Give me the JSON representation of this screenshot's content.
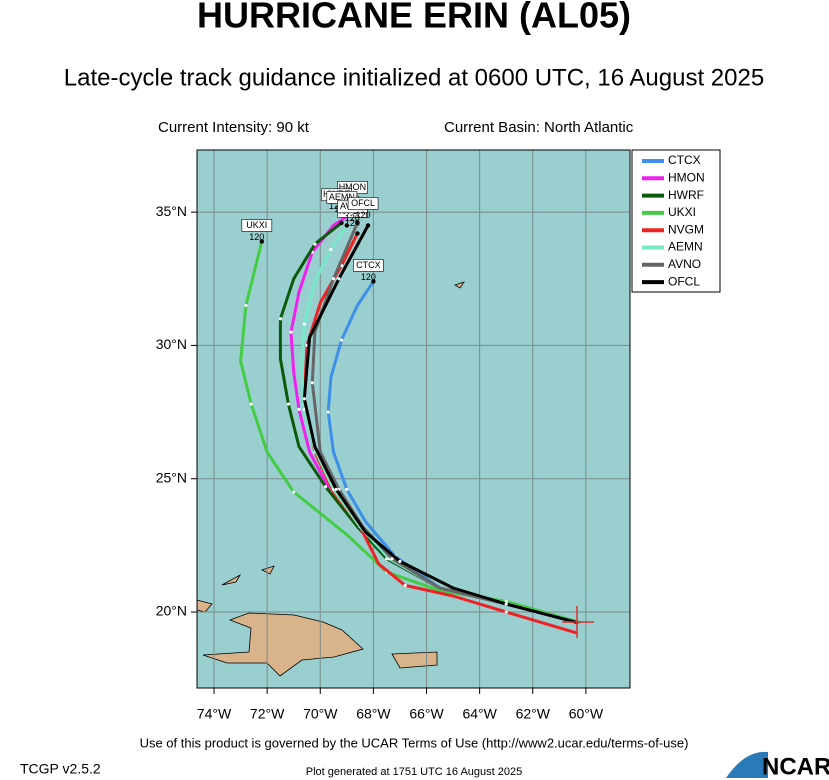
{
  "chart_data": {
    "type": "track-map",
    "title": "HURRICANE ERIN (AL05)",
    "subtitle": "Late-cycle track guidance initialized at 0600 UTC, 16 August 2025",
    "intensity": "Current Intensity: 90 kt",
    "basin": "Current Basin: North Atlantic",
    "terms": "Use of this product is governed by the UCAR Terms of Use (http://www2.ucar.edu/terms-of-use)",
    "version": "TCGP v2.5.2",
    "generated": "Plot generated at 1751 UTC  16 August 2025",
    "logo": "NCAR",
    "xlim": [
      -74.64,
      -58.34
    ],
    "ylim": [
      17.15,
      37.33
    ],
    "xticks": [
      {
        "value": -74,
        "label": "74°W"
      },
      {
        "value": -72,
        "label": "72°W"
      },
      {
        "value": -70,
        "label": "70°W"
      },
      {
        "value": -68,
        "label": "68°W"
      },
      {
        "value": -66,
        "label": "66°W"
      },
      {
        "value": -64,
        "label": "64°W"
      },
      {
        "value": -62,
        "label": "62°W"
      },
      {
        "value": -60,
        "label": "60°W"
      }
    ],
    "yticks": [
      {
        "value": 20,
        "label": "20°N"
      },
      {
        "value": 25,
        "label": "25°N"
      },
      {
        "value": 30,
        "label": "30°N"
      },
      {
        "value": 35,
        "label": "35°N"
      }
    ],
    "grid": true,
    "legend": "upper right",
    "end_hour": 120,
    "series": [
      {
        "name": "CTCX",
        "color": "#3d8fe8",
        "lon": [
          -60.3,
          -63,
          -65.5,
          -67.2,
          -68.3,
          -69,
          -69.5,
          -69.7,
          -69.6,
          -69.2,
          -68.6,
          -68
        ],
        "lat": [
          19.6,
          20.3,
          20.9,
          22.1,
          23.4,
          24.6,
          26,
          27.5,
          28.8,
          30.2,
          31.5,
          32.4
        ]
      },
      {
        "name": "HMON",
        "color": "#ee22ee",
        "lon": [
          -60.3,
          -63,
          -65.5,
          -67.5,
          -68.5,
          -69.6,
          -70.4,
          -70.8,
          -71,
          -71.1,
          -70.8,
          -70.3,
          -69.5,
          -68.6
        ],
        "lat": [
          19.6,
          20.3,
          20.9,
          22,
          23.2,
          24.5,
          26,
          27.6,
          29,
          30.5,
          32,
          33.5,
          34.5,
          35.1
        ]
      },
      {
        "name": "HWRF",
        "color": "#0a5a0a",
        "lon": [
          -60.3,
          -63,
          -65.5,
          -67.5,
          -68.6,
          -69.8,
          -70.8,
          -71.2,
          -71.5,
          -71.5,
          -71,
          -70.2,
          -69.2
        ],
        "lat": [
          19.6,
          20.3,
          20.9,
          22,
          23.2,
          24.7,
          26.2,
          27.8,
          29.5,
          31,
          32.5,
          33.8,
          34.6
        ]
      },
      {
        "name": "UKXI",
        "color": "#44cc44",
        "lon": [
          -60.2,
          -63,
          -65.5,
          -67.5,
          -69,
          -71,
          -72,
          -72.6,
          -73,
          -72.8,
          -72.2
        ],
        "lat": [
          19.6,
          20.4,
          20.8,
          21.5,
          22.9,
          24.5,
          26,
          27.8,
          29.4,
          31.5,
          33.9
        ]
      },
      {
        "name": "NVGM",
        "color": "#ee2222",
        "lon": [
          -60.3,
          -63,
          -65,
          -66.8,
          -67.8,
          -68.5,
          -69.5,
          -70.2,
          -70.6,
          -70.5,
          -70,
          -69.2,
          -68.6
        ],
        "lat": [
          19.2,
          20,
          20.6,
          21,
          21.8,
          23.2,
          24.5,
          26,
          28,
          30,
          31.6,
          33,
          34.2
        ]
      },
      {
        "name": "AEMN",
        "color": "#77e8c8",
        "lon": [
          -60.3,
          -63,
          -65.5,
          -67.4,
          -68.5,
          -69.5,
          -70.2,
          -70.6,
          -70.7,
          -70.6,
          -70.2,
          -69.6,
          -69
        ],
        "lat": [
          19.6,
          20.3,
          20.9,
          22,
          23.2,
          24.6,
          26.1,
          27.6,
          29.2,
          30.8,
          32.4,
          33.6,
          34.5
        ]
      },
      {
        "name": "AVNO",
        "color": "#666666",
        "lon": [
          -60.3,
          -63,
          -65.5,
          -67.3,
          -68.4,
          -69.3,
          -70,
          -70.3,
          -70.2,
          -69.5,
          -68.6
        ],
        "lat": [
          19.6,
          20.3,
          20.9,
          22,
          23.2,
          24.6,
          26,
          28.6,
          30.5,
          32.5,
          34.6
        ]
      },
      {
        "name": "OFCL",
        "color": "#000000",
        "lon": [
          -60.3,
          -63,
          -65,
          -67,
          -68.3,
          -69.4,
          -70.2,
          -70.6,
          -70.4,
          -69.3,
          -68.2
        ],
        "lat": [
          19.6,
          20.3,
          20.9,
          21.9,
          23,
          24.6,
          26.2,
          28,
          30.3,
          32.5,
          34.5
        ]
      }
    ]
  }
}
